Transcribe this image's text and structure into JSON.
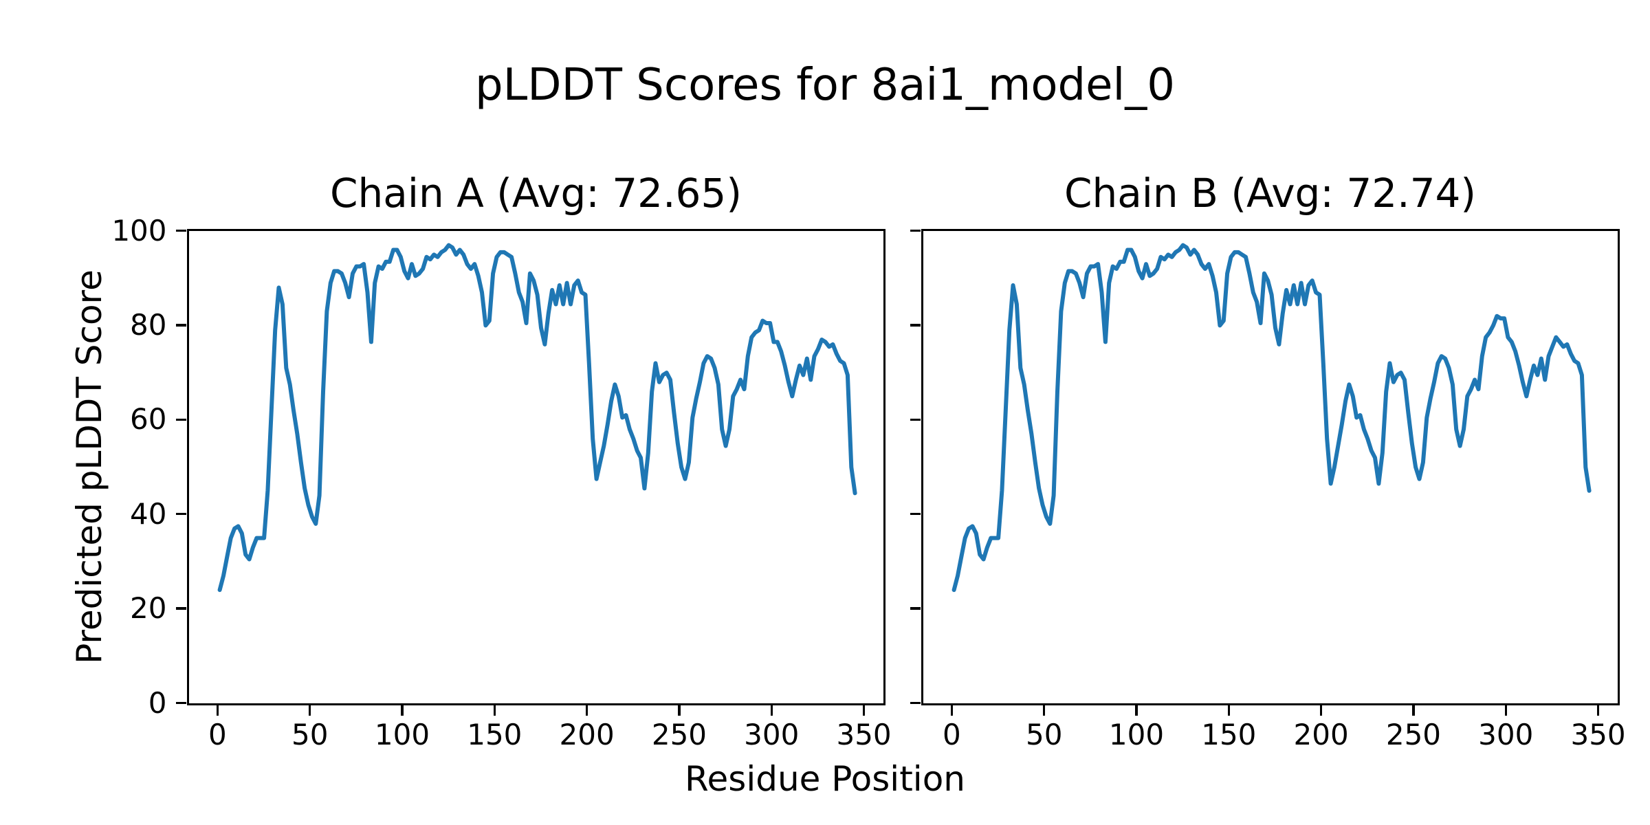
{
  "figure": {
    "title": "pLDDT Scores for 8ai1_model_0",
    "xlabel": "Residue Position",
    "ylabel": "Predicted pLDDT Score",
    "background_color": "#ffffff",
    "text_color": "#000000",
    "spine_color": "#000000"
  },
  "chart_data": [
    {
      "type": "line",
      "title": "Chain A (Avg: 72.65)",
      "series_name": "Chain A",
      "avg": 72.65,
      "line_color": "#1f77b4",
      "grid": false,
      "legend": "none",
      "xlim": [
        -15.6,
        360.4
      ],
      "ylim": [
        0,
        100
      ],
      "x_ticks": [
        0,
        50,
        100,
        150,
        200,
        250,
        300,
        350
      ],
      "y_ticks": [
        0,
        20,
        40,
        60,
        80,
        100
      ],
      "y_tick_labels_visible": true,
      "x_start": 1,
      "x_step": 2,
      "values": [
        24,
        27,
        31,
        35,
        37,
        37.5,
        36,
        31.5,
        30.5,
        33,
        35,
        35,
        35,
        45,
        62,
        79,
        88,
        84.5,
        71,
        67.5,
        62,
        57,
        51,
        45.5,
        42,
        39.5,
        38,
        44,
        66,
        83,
        89,
        91.5,
        91.5,
        91,
        89,
        86,
        91,
        92.5,
        92.5,
        93,
        87,
        76.5,
        89,
        92.5,
        92,
        93.5,
        93.5,
        96,
        96,
        94.5,
        91.5,
        90,
        93,
        90.5,
        91,
        92,
        94.5,
        94,
        95,
        94.5,
        95.5,
        96,
        97,
        96.5,
        95,
        96,
        95,
        93,
        92,
        93,
        90.5,
        87,
        80,
        81,
        91,
        94.5,
        95.5,
        95.5,
        95,
        94.5,
        91,
        87,
        85,
        80.5,
        91,
        89.5,
        86.5,
        79.5,
        76,
        82.5,
        87.5,
        84.5,
        88.5,
        84.5,
        89,
        84.5,
        88.5,
        89.5,
        87,
        86.5,
        72,
        56,
        47.5,
        51,
        54.5,
        59,
        64,
        67.5,
        65,
        60.5,
        61,
        58,
        56,
        53.5,
        52,
        45.5,
        53,
        66,
        72,
        68,
        69.5,
        70,
        68.5,
        61.5,
        55,
        50,
        47.5,
        51,
        60.5,
        64.5,
        68,
        72,
        73.5,
        73,
        71,
        67.5,
        58,
        54.5,
        58,
        65,
        66.5,
        68.5,
        66.5,
        73.5,
        77.5,
        78.5,
        79,
        81,
        80.5,
        80.5,
        76.5,
        76.5,
        74.5,
        71.5,
        68,
        65,
        68.5,
        71.5,
        69.5,
        73,
        68.5,
        73.5,
        75,
        77,
        76.5,
        75.5,
        76,
        74,
        72.5,
        72,
        69.5,
        50,
        44.5
      ]
    },
    {
      "type": "line",
      "title": "Chain B (Avg: 72.74)",
      "series_name": "Chain B",
      "avg": 72.74,
      "line_color": "#1f77b4",
      "grid": false,
      "legend": "none",
      "xlim": [
        -15.6,
        360.4
      ],
      "ylim": [
        0,
        100
      ],
      "x_ticks": [
        0,
        50,
        100,
        150,
        200,
        250,
        300,
        350
      ],
      "y_ticks": [
        0,
        20,
        40,
        60,
        80,
        100
      ],
      "y_tick_labels_visible": false,
      "x_start": 1,
      "x_step": 2,
      "values": [
        24,
        27,
        31,
        35,
        37,
        37.5,
        36,
        31.5,
        30.5,
        33,
        35,
        35,
        35,
        45,
        62,
        79,
        88.5,
        84.5,
        71,
        67.5,
        62,
        57,
        51,
        45.5,
        42,
        39.5,
        38,
        44,
        66,
        83,
        89,
        91.5,
        91.5,
        91,
        89,
        86,
        91,
        92.5,
        92.5,
        93,
        87,
        76.5,
        89,
        92.5,
        92,
        93.5,
        93.5,
        96,
        96,
        94.5,
        91.5,
        90,
        93,
        90.5,
        91,
        92,
        94.5,
        94,
        95,
        94.5,
        95.5,
        96,
        97,
        96.5,
        95,
        96,
        95,
        93,
        92,
        93,
        90.5,
        87,
        80,
        81,
        91,
        94.5,
        95.5,
        95.5,
        95,
        94.5,
        91,
        87,
        85,
        80.5,
        91,
        89.5,
        86.5,
        79.5,
        76,
        82.5,
        87.5,
        84.5,
        88.5,
        84.5,
        89,
        84.5,
        88.5,
        89.5,
        87,
        86.5,
        72,
        56,
        46.5,
        50,
        54.5,
        59,
        64,
        67.5,
        65,
        60.5,
        61,
        58,
        56,
        53.5,
        52,
        46.5,
        53,
        66,
        72,
        68,
        69.5,
        70,
        68.5,
        61.5,
        55,
        50,
        47.5,
        51,
        60.5,
        64.5,
        68,
        72,
        73.5,
        73,
        71,
        67.5,
        58,
        54.5,
        58,
        65,
        66.5,
        68.5,
        66.5,
        73.5,
        77.5,
        78.5,
        80,
        82,
        81.5,
        81.5,
        77.5,
        76.5,
        74.5,
        71.5,
        68,
        65,
        68.5,
        71.5,
        69.5,
        73,
        68.5,
        73.5,
        75.5,
        77.5,
        76.5,
        75.5,
        76,
        74,
        72.5,
        72,
        69.5,
        50,
        45
      ]
    }
  ]
}
